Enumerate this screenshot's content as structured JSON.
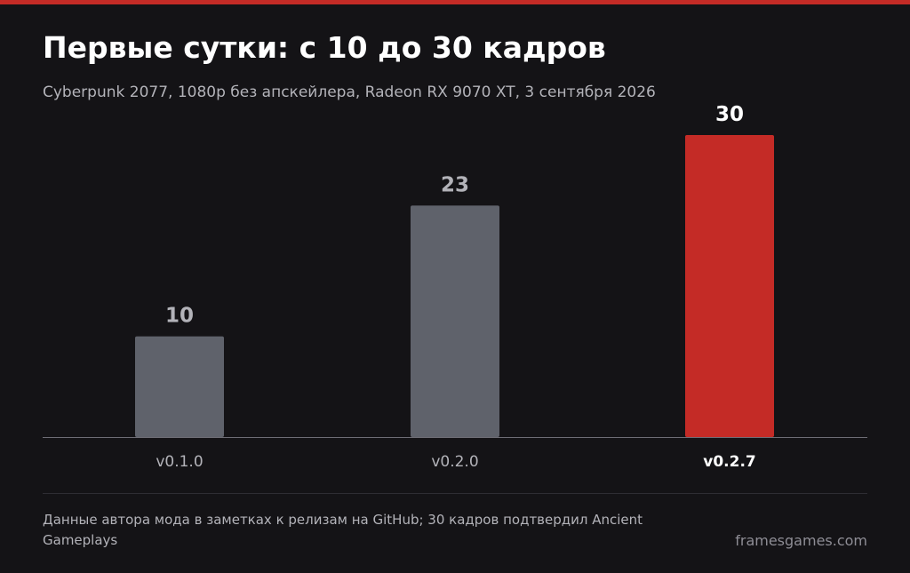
{
  "title": "Первые сутки: с 10 до 30 кадров",
  "subtitle": "Cyberpunk 2077, 1080p без апскейлера, Radeon RX 9070 XT, 3 сентября 2026",
  "footer": {
    "source": "Данные автора мода в заметках к релизам на GitHub; 30 кадров подтвердил Ancient Gameplays",
    "site": "framesgames.com"
  },
  "colors": {
    "accent": "#c42b26",
    "bar_default": "#5f626b",
    "value_default": "#b3b3b9",
    "value_highlight": "#ffffff"
  },
  "chart_data": {
    "type": "bar",
    "title": "Первые сутки: с 10 до 30 кадров",
    "xlabel": "",
    "ylabel": "",
    "categories": [
      "v0.1.0",
      "v0.2.0",
      "v0.2.7"
    ],
    "values": [
      10,
      23,
      30
    ],
    "labels": [
      "10",
      "23",
      "30"
    ],
    "highlight_index": 2,
    "ylim": [
      0,
      30
    ],
    "grid": false,
    "legend": "none"
  }
}
